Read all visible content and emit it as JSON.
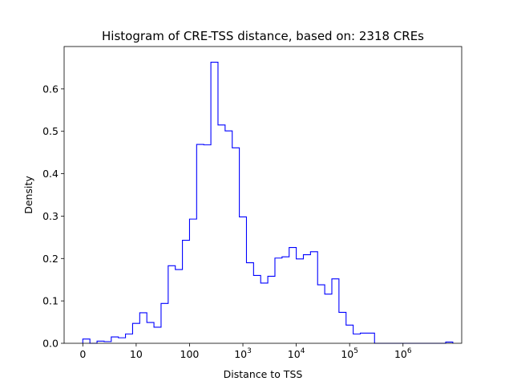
{
  "chart_data": {
    "type": "histogram-step",
    "title": "Histogram of CRE-TSS distance, based on: 2318 CREs",
    "xlabel": "Distance to TSS",
    "ylabel": "Density",
    "x_scale": "symlog (0 to ~10^7)",
    "xlim": [
      -0.35,
      7.1
    ],
    "ylim": [
      0,
      0.7
    ],
    "grid": false,
    "line_color": "#0000ff",
    "x_ticks": [
      {
        "value": 0,
        "label": "0"
      },
      {
        "value": 1,
        "label": "10"
      },
      {
        "value": 2,
        "label": "100"
      },
      {
        "value": 3,
        "base": "10",
        "exp": "3"
      },
      {
        "value": 4,
        "base": "10",
        "exp": "4"
      },
      {
        "value": 5,
        "base": "10",
        "exp": "5"
      },
      {
        "value": 6,
        "base": "10",
        "exp": "6"
      }
    ],
    "y_ticks": [
      "0.0",
      "0.1",
      "0.2",
      "0.3",
      "0.4",
      "0.5",
      "0.6"
    ],
    "bin_edges": [
      0.0,
      0.1333,
      0.2667,
      0.4,
      0.5333,
      0.6667,
      0.8,
      0.9333,
      1.0667,
      1.2,
      1.3333,
      1.4667,
      1.6,
      1.7333,
      1.8667,
      2.0,
      2.1333,
      2.2667,
      2.4,
      2.5333,
      2.6667,
      2.8,
      2.9333,
      3.0667,
      3.2,
      3.3333,
      3.4667,
      3.6,
      3.7333,
      3.8667,
      4.0,
      4.1333,
      4.2667,
      4.4,
      4.5333,
      4.6667,
      4.8,
      4.9333,
      5.0667,
      5.2,
      5.3333,
      5.4667,
      5.6,
      5.7333,
      5.8667,
      6.0,
      6.1333,
      6.2667,
      6.4,
      6.5333,
      6.6667,
      6.8,
      6.9333
    ],
    "densities": [
      0.01,
      0.0,
      0.005,
      0.004,
      0.015,
      0.013,
      0.022,
      0.047,
      0.072,
      0.049,
      0.038,
      0.094,
      0.183,
      0.174,
      0.243,
      0.293,
      0.469,
      0.468,
      0.663,
      0.515,
      0.501,
      0.461,
      0.298,
      0.19,
      0.16,
      0.142,
      0.158,
      0.201,
      0.204,
      0.226,
      0.199,
      0.209,
      0.216,
      0.138,
      0.116,
      0.152,
      0.073,
      0.043,
      0.022,
      0.024,
      0.024,
      0.0,
      0.0,
      0.0,
      0.0,
      0.0,
      0.0,
      0.0,
      0.0,
      0.0,
      0.0,
      0.003
    ]
  }
}
